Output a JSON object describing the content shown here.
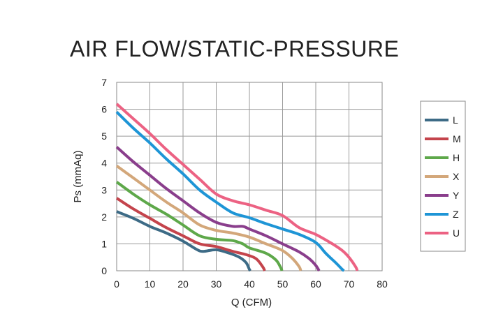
{
  "chart_data": {
    "type": "line",
    "title": "AIR FLOW/STATIC-PRESSURE",
    "xlabel": "Q (CFM)",
    "ylabel": "Ps (mmAq)",
    "xlim": [
      0,
      80
    ],
    "ylim": [
      0,
      7
    ],
    "xticks": [
      0,
      10,
      20,
      30,
      40,
      50,
      60,
      70,
      80
    ],
    "yticks": [
      0,
      1,
      2,
      3,
      4,
      5,
      6,
      7
    ],
    "grid": true,
    "legend_position": "right",
    "series": [
      {
        "name": "L",
        "color": "#3d6b86",
        "points": [
          [
            0,
            2.2
          ],
          [
            5,
            1.95
          ],
          [
            10,
            1.65
          ],
          [
            15,
            1.4
          ],
          [
            20,
            1.1
          ],
          [
            24,
            0.8
          ],
          [
            26,
            0.72
          ],
          [
            30,
            0.78
          ],
          [
            34,
            0.65
          ],
          [
            37,
            0.5
          ],
          [
            39,
            0.3
          ],
          [
            40,
            0.05
          ],
          [
            40.3,
            0
          ]
        ]
      },
      {
        "name": "M",
        "color": "#c4444c",
        "points": [
          [
            0,
            2.7
          ],
          [
            5,
            2.3
          ],
          [
            10,
            1.95
          ],
          [
            15,
            1.6
          ],
          [
            20,
            1.3
          ],
          [
            25,
            1.0
          ],
          [
            30,
            0.9
          ],
          [
            35,
            0.72
          ],
          [
            39,
            0.6
          ],
          [
            42,
            0.45
          ],
          [
            44,
            0.15
          ],
          [
            44.6,
            0
          ]
        ]
      },
      {
        "name": "H",
        "color": "#5ea84a",
        "points": [
          [
            0,
            3.3
          ],
          [
            5,
            2.85
          ],
          [
            10,
            2.45
          ],
          [
            15,
            2.1
          ],
          [
            20,
            1.7
          ],
          [
            25,
            1.3
          ],
          [
            30,
            1.17
          ],
          [
            35,
            1.12
          ],
          [
            38,
            1.0
          ],
          [
            40,
            0.85
          ],
          [
            45,
            0.65
          ],
          [
            48,
            0.4
          ],
          [
            49.5,
            0.1
          ],
          [
            49.8,
            0
          ]
        ]
      },
      {
        "name": "X",
        "color": "#d3a77a",
        "points": [
          [
            0,
            3.9
          ],
          [
            5,
            3.45
          ],
          [
            10,
            3.0
          ],
          [
            15,
            2.55
          ],
          [
            20,
            2.15
          ],
          [
            25,
            1.7
          ],
          [
            30,
            1.5
          ],
          [
            35,
            1.4
          ],
          [
            40,
            1.25
          ],
          [
            45,
            1.0
          ],
          [
            50,
            0.75
          ],
          [
            53,
            0.45
          ],
          [
            55,
            0.15
          ],
          [
            55.5,
            0
          ]
        ]
      },
      {
        "name": "Y",
        "color": "#8a3e8c",
        "points": [
          [
            0,
            4.6
          ],
          [
            5,
            4.05
          ],
          [
            10,
            3.55
          ],
          [
            15,
            3.05
          ],
          [
            20,
            2.6
          ],
          [
            25,
            2.15
          ],
          [
            30,
            1.8
          ],
          [
            35,
            1.65
          ],
          [
            38,
            1.65
          ],
          [
            40,
            1.55
          ],
          [
            45,
            1.3
          ],
          [
            50,
            1.0
          ],
          [
            55,
            0.7
          ],
          [
            58,
            0.45
          ],
          [
            60,
            0.2
          ],
          [
            61,
            0
          ]
        ]
      },
      {
        "name": "Z",
        "color": "#1e95d6",
        "points": [
          [
            0,
            5.9
          ],
          [
            5,
            5.3
          ],
          [
            10,
            4.75
          ],
          [
            15,
            4.15
          ],
          [
            20,
            3.6
          ],
          [
            25,
            3.0
          ],
          [
            30,
            2.55
          ],
          [
            35,
            2.15
          ],
          [
            40,
            1.97
          ],
          [
            45,
            1.75
          ],
          [
            50,
            1.55
          ],
          [
            55,
            1.35
          ],
          [
            60,
            1.05
          ],
          [
            63,
            0.65
          ],
          [
            66,
            0.3
          ],
          [
            68,
            0.05
          ],
          [
            68.5,
            0
          ]
        ]
      },
      {
        "name": "U",
        "color": "#ec6283",
        "points": [
          [
            0,
            6.2
          ],
          [
            5,
            5.65
          ],
          [
            10,
            5.1
          ],
          [
            15,
            4.5
          ],
          [
            20,
            3.95
          ],
          [
            25,
            3.4
          ],
          [
            30,
            2.85
          ],
          [
            35,
            2.6
          ],
          [
            40,
            2.45
          ],
          [
            45,
            2.25
          ],
          [
            50,
            2.05
          ],
          [
            55,
            1.6
          ],
          [
            60,
            1.35
          ],
          [
            65,
            1.0
          ],
          [
            68,
            0.75
          ],
          [
            70,
            0.5
          ],
          [
            72,
            0.15
          ],
          [
            72.5,
            0
          ]
        ]
      }
    ]
  }
}
